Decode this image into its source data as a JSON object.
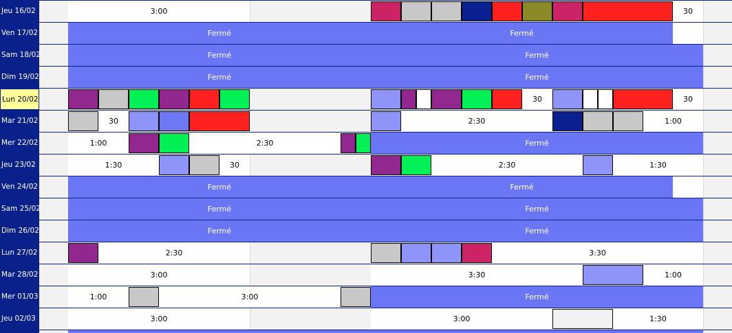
{
  "colors": {
    "sidebar": "#0a218c",
    "closed": "#6b76f5",
    "purple": "#92278f",
    "gray": "#c8c8c8",
    "green": "#00f055",
    "red": "#ff2020",
    "pink": "#cc2266",
    "navy": "#0a1f90",
    "olive": "#8a8a28",
    "lavender": "#8e94f8",
    "blue": "#6f78f3",
    "lightgray": "#f2f2f2",
    "white": "#ffffff"
  },
  "rows": [
    {
      "label": "Jeu 16/02",
      "whites": [
        [
          99,
          363
        ],
        [
          539,
          1022
        ]
      ],
      "closed": [],
      "blocks": [
        [
          539,
          583,
          "pink"
        ],
        [
          583,
          627,
          "gray"
        ],
        [
          627,
          671,
          "gray"
        ],
        [
          671,
          715,
          "navy"
        ],
        [
          715,
          759,
          "red"
        ],
        [
          759,
          803,
          "olive"
        ],
        [
          803,
          847,
          "pink"
        ],
        [
          847,
          978,
          "red"
        ]
      ],
      "durations": [
        [
          99,
          363,
          "3:00"
        ],
        [
          978,
          1022,
          "30"
        ]
      ]
    },
    {
      "label": "Ven 17/02",
      "whites": [
        [
          978,
          1022
        ]
      ],
      "closed": [
        [
          99,
          539,
          "Fermé"
        ],
        [
          539,
          978,
          "Fermé"
        ]
      ],
      "blocks": [],
      "durations": []
    },
    {
      "label": "Sam 18/02",
      "whites": [],
      "closed": [
        [
          99,
          539,
          "Fermé"
        ],
        [
          539,
          1022,
          "Fermé"
        ]
      ],
      "blocks": [],
      "durations": []
    },
    {
      "label": "Dim 19/02",
      "whites": [],
      "closed": [
        [
          99,
          539,
          "Fermé"
        ],
        [
          539,
          1022,
          "Fermé"
        ]
      ],
      "blocks": [],
      "durations": []
    },
    {
      "label": "Lun 20/02",
      "today": true,
      "whites": [
        [
          539,
          1022
        ]
      ],
      "closed": [],
      "blocks": [
        [
          99,
          143,
          "purple"
        ],
        [
          143,
          187,
          "gray"
        ],
        [
          187,
          231,
          "green"
        ],
        [
          231,
          275,
          "purple"
        ],
        [
          275,
          319,
          "red"
        ],
        [
          319,
          363,
          "green"
        ],
        [
          539,
          583,
          "lavender"
        ],
        [
          583,
          605,
          "purple"
        ],
        [
          605,
          627,
          "white"
        ],
        [
          627,
          671,
          "purple"
        ],
        [
          671,
          715,
          "green"
        ],
        [
          715,
          759,
          "red"
        ],
        [
          803,
          847,
          "lavender"
        ],
        [
          847,
          869,
          "white"
        ],
        [
          869,
          891,
          "white"
        ],
        [
          891,
          978,
          "red"
        ]
      ],
      "durations": [
        [
          759,
          803,
          "30"
        ],
        [
          978,
          1022,
          "30"
        ]
      ]
    },
    {
      "label": "Mar 21/02",
      "whites": [
        [
          99,
          363
        ],
        [
          539,
          1022
        ]
      ],
      "closed": [],
      "blocks": [
        [
          99,
          143,
          "gray"
        ],
        [
          187,
          231,
          "lavender"
        ],
        [
          231,
          275,
          "blue"
        ],
        [
          275,
          363,
          "red"
        ],
        [
          539,
          583,
          "lavender"
        ],
        [
          803,
          847,
          "navy"
        ],
        [
          847,
          891,
          "gray"
        ],
        [
          891,
          935,
          "gray"
        ]
      ],
      "durations": [
        [
          143,
          187,
          "30"
        ],
        [
          583,
          803,
          "2:30"
        ],
        [
          935,
          1022,
          "1:00"
        ]
      ]
    },
    {
      "label": "Mer 22/02",
      "whites": [
        [
          99,
          495
        ]
      ],
      "closed": [
        [
          539,
          1022,
          "Fermé"
        ]
      ],
      "blocks": [
        [
          187,
          231,
          "purple"
        ],
        [
          231,
          275,
          "green"
        ],
        [
          495,
          517,
          "purple"
        ],
        [
          517,
          539,
          "green"
        ]
      ],
      "durations": [
        [
          99,
          187,
          "1:00"
        ],
        [
          275,
          495,
          "2:30"
        ]
      ]
    },
    {
      "label": "Jeu 23/02",
      "whites": [
        [
          99,
          363
        ],
        [
          539,
          1022
        ]
      ],
      "closed": [],
      "blocks": [
        [
          231,
          275,
          "lavender"
        ],
        [
          275,
          319,
          "gray"
        ],
        [
          539,
          583,
          "purple"
        ],
        [
          583,
          627,
          "green"
        ],
        [
          847,
          891,
          "lavender"
        ]
      ],
      "durations": [
        [
          99,
          231,
          "1:30"
        ],
        [
          319,
          363,
          "30"
        ],
        [
          627,
          847,
          "2:30"
        ],
        [
          891,
          1022,
          "1:30"
        ]
      ]
    },
    {
      "label": "Ven 24/02",
      "whites": [
        [
          978,
          1022
        ]
      ],
      "closed": [
        [
          99,
          539,
          "Fermé"
        ],
        [
          539,
          978,
          "Fermé"
        ]
      ],
      "blocks": [],
      "durations": []
    },
    {
      "label": "Sam 25/02",
      "whites": [],
      "closed": [
        [
          99,
          539,
          "Fermé"
        ],
        [
          539,
          1022,
          "Fermé"
        ]
      ],
      "blocks": [],
      "durations": []
    },
    {
      "label": "Dim 26/02",
      "whites": [],
      "closed": [
        [
          99,
          539,
          "Fermé"
        ],
        [
          539,
          1022,
          "Fermé"
        ]
      ],
      "blocks": [],
      "durations": []
    },
    {
      "label": "Lun 27/02",
      "whites": [
        [
          99,
          363
        ],
        [
          539,
          1022
        ]
      ],
      "closed": [],
      "blocks": [
        [
          99,
          143,
          "purple"
        ],
        [
          539,
          583,
          "gray"
        ],
        [
          583,
          627,
          "lavender"
        ],
        [
          627,
          671,
          "lavender"
        ],
        [
          671,
          715,
          "pink"
        ]
      ],
      "durations": [
        [
          143,
          363,
          "2:30"
        ],
        [
          715,
          1022,
          "3:30"
        ]
      ]
    },
    {
      "label": "Mar 28/02",
      "whites": [
        [
          99,
          363
        ],
        [
          539,
          1022
        ]
      ],
      "closed": [],
      "blocks": [
        [
          847,
          935,
          "lavender"
        ]
      ],
      "durations": [
        [
          99,
          363,
          "3:00"
        ],
        [
          539,
          847,
          "3:30"
        ],
        [
          935,
          1022,
          "1:00"
        ]
      ]
    },
    {
      "label": "Mer 01/03",
      "whites": [
        [
          99,
          495
        ]
      ],
      "closed": [
        [
          539,
          1022,
          "Fermé"
        ]
      ],
      "blocks": [
        [
          187,
          231,
          "gray"
        ],
        [
          495,
          539,
          "gray"
        ]
      ],
      "durations": [
        [
          99,
          187,
          "1:00"
        ],
        [
          231,
          495,
          "3:00"
        ]
      ]
    },
    {
      "label": "Jeu 02/03",
      "whites": [
        [
          99,
          363
        ],
        [
          539,
          1022
        ]
      ],
      "closed": [],
      "blocks": [
        [
          803,
          891,
          "lightgray"
        ]
      ],
      "durations": [
        [
          99,
          363,
          "3:00"
        ],
        [
          539,
          803,
          "3:00"
        ],
        [
          891,
          1022,
          "1:30"
        ]
      ]
    }
  ]
}
